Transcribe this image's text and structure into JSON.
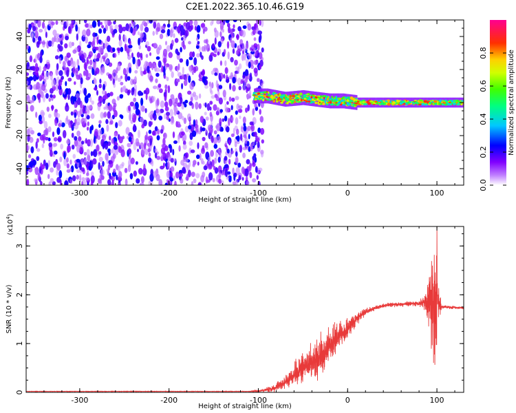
{
  "title": "C2E1.2022.365.10.46.G19",
  "chart_data": [
    {
      "type": "heatmap",
      "xlabel": "Height of straight line (km)",
      "ylabel": "Frequency (Hz)",
      "xlim": [
        -360,
        130
      ],
      "ylim": [
        -50,
        50
      ],
      "xticks": [
        -300,
        -200,
        -100,
        0,
        100
      ],
      "yticks": [
        -40,
        -20,
        0,
        20,
        40
      ],
      "colorbar": {
        "label": "Normalized spectral amplitude",
        "range": [
          0.0,
          1.0
        ],
        "ticks": [
          0.0,
          0.2,
          0.4,
          0.6,
          0.8
        ],
        "colormap": [
          "#ffffff",
          "#8000ff",
          "#0000ff",
          "#00ffff",
          "#00ff00",
          "#ffff00",
          "#ff0000",
          "#ff00aa"
        ]
      },
      "regions": [
        {
          "x_range": [
            -360,
            -95
          ],
          "frequency_range": [
            -50,
            50
          ],
          "amplitude_range": [
            0.05,
            0.25
          ]
        },
        {
          "x_range": [
            -105,
            130
          ],
          "center_frequency": [
            [
              -105,
              4
            ],
            [
              -90,
              4
            ],
            [
              -70,
              2
            ],
            [
              -50,
              3
            ],
            [
              -35,
              2
            ],
            [
              -20,
              1
            ],
            [
              -5,
              1
            ],
            [
              10,
              0
            ],
            [
              50,
              0
            ],
            [
              80,
              0
            ],
            [
              100,
              0
            ],
            [
              130,
              0
            ]
          ],
          "amplitude_range": [
            0.35,
            0.9
          ]
        }
      ]
    },
    {
      "type": "line",
      "xlabel": "Height of straight line (km)",
      "ylabel": "SNR (10 * v/v)",
      "yscale_label": "(x10",
      "yscale_exp": "4",
      "yscale_close": ")",
      "xlim": [
        -360,
        130
      ],
      "ylim": [
        0,
        3.4
      ],
      "xticks": [
        -300,
        -200,
        -100,
        0,
        100
      ],
      "yticks": [
        0,
        1,
        2,
        3
      ],
      "series": [
        {
          "color": "#e83a3a",
          "envelope_x": [
            -360,
            -110,
            -100,
            -90,
            -80,
            -70,
            -60,
            -50,
            -40,
            -30,
            -20,
            -10,
            0,
            10,
            20,
            30,
            40,
            50,
            60,
            70,
            80,
            85,
            90,
            95,
            98,
            100,
            102,
            105,
            110,
            120,
            130
          ],
          "envelope_mean": [
            0.02,
            0.02,
            0.03,
            0.05,
            0.1,
            0.2,
            0.35,
            0.5,
            0.6,
            0.75,
            0.95,
            1.15,
            1.3,
            1.5,
            1.65,
            1.72,
            1.78,
            1.8,
            1.8,
            1.82,
            1.82,
            1.85,
            1.85,
            1.8,
            1.9,
            2.0,
            1.8,
            1.75,
            1.75,
            1.74,
            1.73
          ],
          "envelope_amp": [
            0.005,
            0.005,
            0.02,
            0.05,
            0.1,
            0.15,
            0.25,
            0.35,
            0.4,
            0.45,
            0.4,
            0.3,
            0.25,
            0.12,
            0.08,
            0.05,
            0.05,
            0.05,
            0.05,
            0.05,
            0.05,
            0.15,
            0.4,
            1.0,
            1.5,
            1.4,
            0.4,
            0.05,
            0.04,
            0.03,
            0.03
          ]
        }
      ]
    }
  ]
}
